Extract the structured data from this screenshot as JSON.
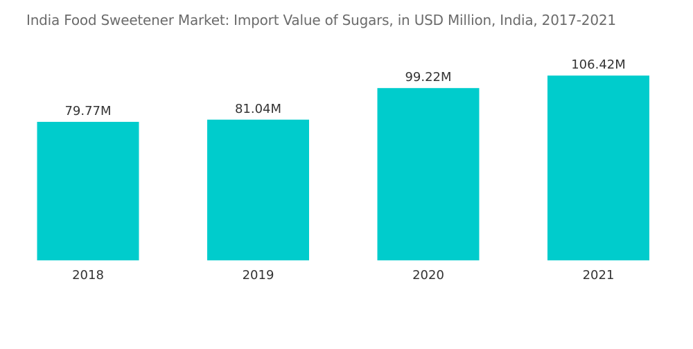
{
  "chart_data": {
    "type": "bar",
    "title": "India Food Sweetener Market: Import Value of Sugars, in USD Million, India, 2017-2021",
    "categories": [
      "2018",
      "2019",
      "2020",
      "2021"
    ],
    "values": [
      79.77,
      81.04,
      99.22,
      106.42
    ],
    "data_labels": [
      "79.77M",
      "81.04M",
      "99.22M",
      "106.42M"
    ],
    "xlabel": "",
    "ylabel": "",
    "ylim": [
      0,
      130
    ],
    "grid": false,
    "legend": "none",
    "bar_color": "#00CCCC"
  }
}
